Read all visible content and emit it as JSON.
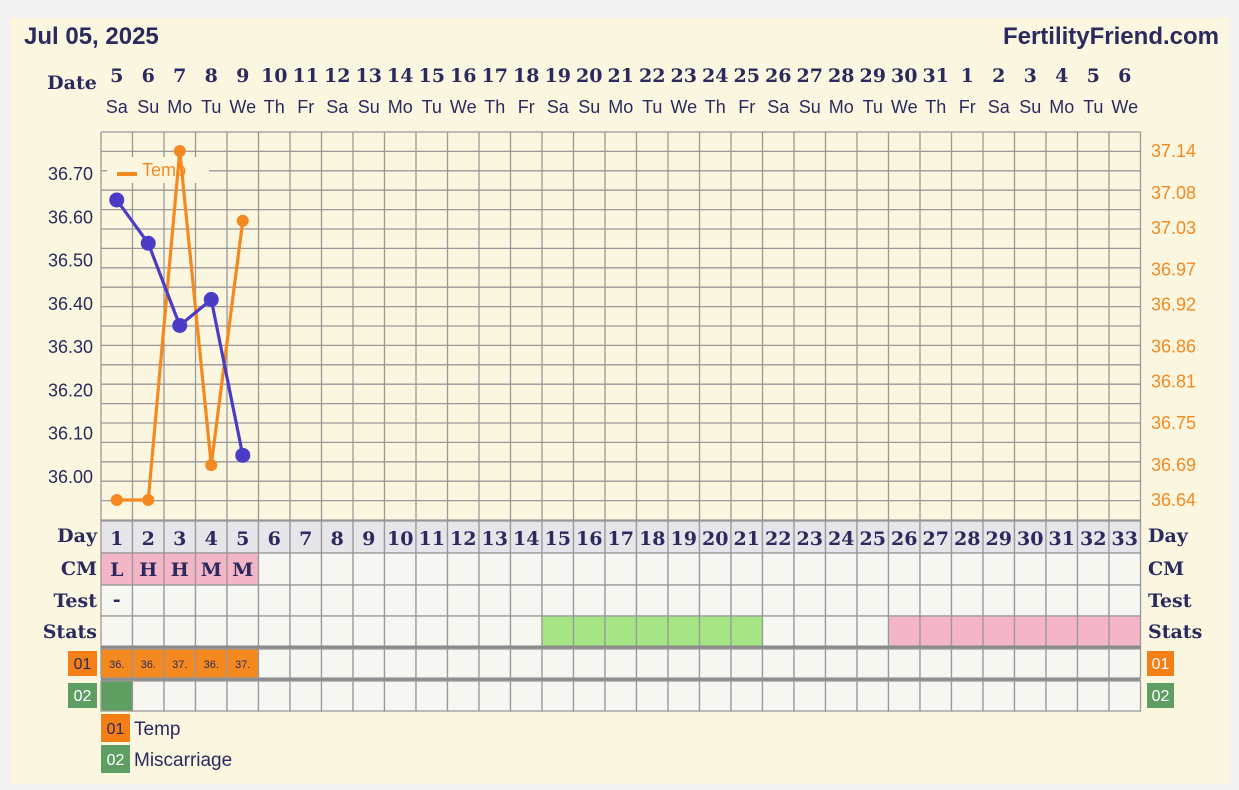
{
  "header": {
    "date": "Jul 05, 2025",
    "site": "FertilityFriend.com"
  },
  "labels": {
    "date": "Date",
    "day": "Day",
    "cm": "CM",
    "test": "Test",
    "stats": "Stats"
  },
  "columns": [
    {
      "date": "5",
      "dow": "Sa"
    },
    {
      "date": "6",
      "dow": "Su"
    },
    {
      "date": "7",
      "dow": "Mo"
    },
    {
      "date": "8",
      "dow": "Tu"
    },
    {
      "date": "9",
      "dow": "We"
    },
    {
      "date": "10",
      "dow": "Th"
    },
    {
      "date": "11",
      "dow": "Fr"
    },
    {
      "date": "12",
      "dow": "Sa"
    },
    {
      "date": "13",
      "dow": "Su"
    },
    {
      "date": "14",
      "dow": "Mo"
    },
    {
      "date": "15",
      "dow": "Tu"
    },
    {
      "date": "16",
      "dow": "We"
    },
    {
      "date": "17",
      "dow": "Th"
    },
    {
      "date": "18",
      "dow": "Fr"
    },
    {
      "date": "19",
      "dow": "Sa"
    },
    {
      "date": "20",
      "dow": "Su"
    },
    {
      "date": "21",
      "dow": "Mo"
    },
    {
      "date": "22",
      "dow": "Tu"
    },
    {
      "date": "23",
      "dow": "We"
    },
    {
      "date": "24",
      "dow": "Th"
    },
    {
      "date": "25",
      "dow": "Fr"
    },
    {
      "date": "26",
      "dow": "Sa"
    },
    {
      "date": "27",
      "dow": "Su"
    },
    {
      "date": "28",
      "dow": "Mo"
    },
    {
      "date": "29",
      "dow": "Tu"
    },
    {
      "date": "30",
      "dow": "We"
    },
    {
      "date": "31",
      "dow": "Th"
    },
    {
      "date": "1",
      "dow": "Fr"
    },
    {
      "date": "2",
      "dow": "Sa"
    },
    {
      "date": "3",
      "dow": "Su"
    },
    {
      "date": "4",
      "dow": "Mo"
    },
    {
      "date": "5",
      "dow": "Tu"
    },
    {
      "date": "6",
      "dow": "We"
    }
  ],
  "rows": {
    "cm": [
      "L",
      "H",
      "H",
      "M",
      "M"
    ],
    "test": [
      "-"
    ],
    "stats_green": [
      15,
      16,
      17,
      18,
      19,
      20,
      21
    ],
    "stats_pink": [
      26,
      27,
      28,
      29,
      30,
      31,
      32,
      33
    ],
    "track01_label": "01",
    "track01_values": [
      "36.",
      "36.",
      "37.",
      "36.",
      "37."
    ],
    "track02_label": "02",
    "track02_filled": [
      1
    ]
  },
  "legend": [
    {
      "code": "01",
      "label": "Temp",
      "color": "#f57f17"
    },
    {
      "code": "02",
      "label": "Miscarriage",
      "color": "#5f9e63"
    }
  ],
  "chart_data": {
    "type": "line",
    "x_days": [
      1,
      2,
      3,
      4,
      5
    ],
    "left_axis": {
      "ticks": [
        "36.00",
        "36.10",
        "36.20",
        "36.30",
        "36.40",
        "36.50",
        "36.60",
        "36.70"
      ]
    },
    "right_axis": {
      "ticks": [
        "36.64",
        "36.69",
        "36.75",
        "36.81",
        "36.86",
        "36.92",
        "36.97",
        "37.03",
        "37.08",
        "37.14"
      ]
    },
    "series": [
      {
        "name": "Temp",
        "axis": "right",
        "color": "#f5891f",
        "values": [
          36.64,
          36.64,
          37.14,
          36.69,
          37.04
        ]
      },
      {
        "axis": "left",
        "color": "#4a3cc4",
        "values": [
          36.64,
          36.54,
          36.35,
          36.41,
          36.05
        ]
      }
    ],
    "legend_position": "top-left"
  },
  "colors": {
    "background": "#fbf6df",
    "navy": "#2a2a5e",
    "orange": "#f5891f",
    "purple": "#4a3cc4",
    "pink": "#f4b6c6",
    "green": "#a5e585",
    "grid": "#999999",
    "cell": "#f7f7f2"
  }
}
